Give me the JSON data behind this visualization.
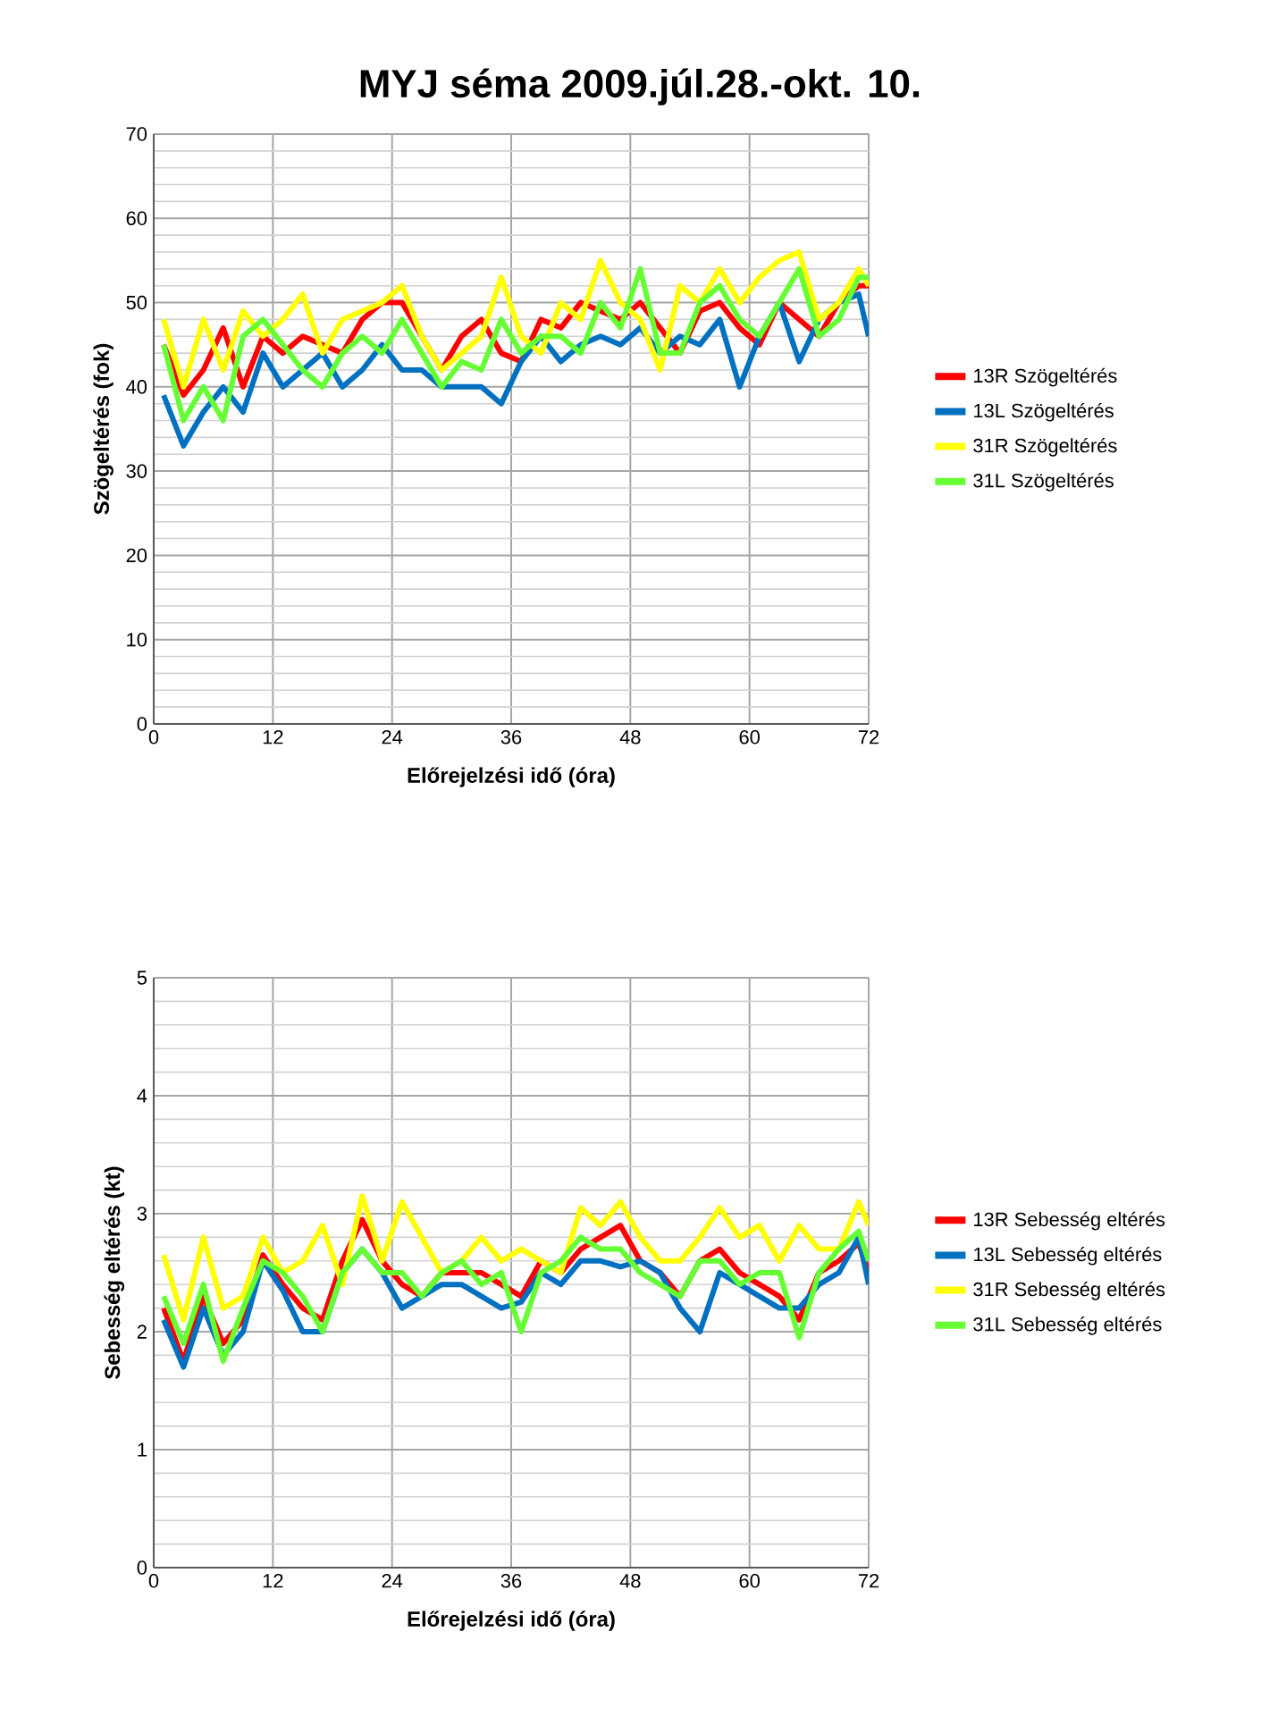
{
  "chart_data": [
    {
      "type": "line",
      "title": "MYJ séma 2009.júl.28.-okt. 10.",
      "xlabel": "Előrejelzési idő (óra)",
      "ylabel": "Szögeltérés (fok)",
      "x": [
        1,
        3,
        5,
        7,
        9,
        11,
        13,
        15,
        17,
        19,
        21,
        23,
        25,
        27,
        29,
        31,
        33,
        35,
        37,
        39,
        41,
        43,
        45,
        47,
        49,
        51,
        53,
        55,
        57,
        59,
        61,
        63,
        65,
        67,
        69,
        71,
        72
      ],
      "series": [
        {
          "name": "13R Szögeltérés",
          "color": "#ff0000",
          "values": [
            45,
            39,
            42,
            47,
            40,
            46,
            44,
            46,
            45,
            44,
            48,
            50,
            50,
            46,
            42,
            46,
            48,
            44,
            43,
            48,
            47,
            50,
            49,
            48,
            50,
            47,
            44,
            49,
            50,
            47,
            45,
            50,
            48,
            46,
            50,
            52,
            52
          ]
        },
        {
          "name": "13L Szögeltérés",
          "color": "#0070c0",
          "values": [
            39,
            33,
            37,
            40,
            37,
            44,
            40,
            42,
            44,
            40,
            42,
            45,
            42,
            42,
            40,
            40,
            40,
            38,
            43,
            46,
            43,
            45,
            46,
            45,
            47,
            44,
            46,
            45,
            48,
            40,
            46,
            50,
            43,
            48,
            50,
            51,
            46
          ]
        },
        {
          "name": "31R Szögeltérés",
          "color": "#ffff00",
          "values": [
            48,
            40,
            48,
            42,
            49,
            46,
            48,
            51,
            44,
            48,
            49,
            50,
            52,
            46,
            42,
            44,
            46,
            53,
            46,
            44,
            50,
            48,
            55,
            50,
            48,
            42,
            52,
            50,
            54,
            50,
            53,
            55,
            56,
            48,
            50,
            54,
            52
          ]
        },
        {
          "name": "31L Szögeltérés",
          "color": "#66ff33",
          "values": [
            45,
            36,
            40,
            36,
            46,
            48,
            45,
            42,
            40,
            44,
            46,
            44,
            48,
            44,
            40,
            43,
            42,
            48,
            44,
            46,
            46,
            44,
            50,
            47,
            54,
            44,
            44,
            50,
            52,
            48,
            46,
            50,
            54,
            46,
            48,
            53,
            53
          ]
        }
      ],
      "xlim": [
        0,
        72
      ],
      "xticks": [
        0,
        12,
        24,
        36,
        48,
        60,
        72
      ],
      "ylim": [
        0,
        70
      ],
      "yticks": [
        0,
        10,
        20,
        30,
        40,
        50,
        60,
        70
      ],
      "grid": true,
      "legend": "right",
      "marker": "none",
      "line_style": "solid"
    },
    {
      "type": "line",
      "xlabel": "Előrejelzési idő (óra)",
      "ylabel": "Sebesség eltérés (kt)",
      "x": [
        1,
        3,
        5,
        7,
        9,
        11,
        13,
        15,
        17,
        19,
        21,
        23,
        25,
        27,
        29,
        31,
        33,
        35,
        37,
        39,
        41,
        43,
        45,
        47,
        49,
        51,
        53,
        55,
        57,
        59,
        61,
        63,
        65,
        67,
        69,
        71,
        72
      ],
      "series": [
        {
          "name": "13R Sebesség eltérés",
          "color": "#ff0000",
          "values": [
            2.2,
            1.75,
            2.3,
            1.9,
            2.1,
            2.65,
            2.4,
            2.2,
            2.1,
            2.6,
            2.95,
            2.6,
            2.4,
            2.3,
            2.5,
            2.5,
            2.5,
            2.4,
            2.3,
            2.6,
            2.5,
            2.7,
            2.8,
            2.9,
            2.6,
            2.5,
            2.3,
            2.6,
            2.7,
            2.5,
            2.4,
            2.3,
            2.1,
            2.5,
            2.6,
            2.75,
            2.5
          ]
        },
        {
          "name": "13L Sebesség eltérés",
          "color": "#0070c0",
          "values": [
            2.1,
            1.7,
            2.2,
            1.8,
            2.0,
            2.6,
            2.35,
            2.0,
            2.0,
            2.5,
            2.7,
            2.5,
            2.2,
            2.3,
            2.4,
            2.4,
            2.3,
            2.2,
            2.25,
            2.5,
            2.4,
            2.6,
            2.6,
            2.55,
            2.6,
            2.5,
            2.2,
            2.0,
            2.5,
            2.4,
            2.3,
            2.2,
            2.2,
            2.4,
            2.5,
            2.8,
            2.4
          ]
        },
        {
          "name": "31R Sebesség eltérés",
          "color": "#ffff00",
          "values": [
            2.65,
            2.1,
            2.8,
            2.2,
            2.3,
            2.8,
            2.5,
            2.6,
            2.9,
            2.4,
            3.15,
            2.6,
            3.1,
            2.8,
            2.5,
            2.6,
            2.8,
            2.6,
            2.7,
            2.6,
            2.5,
            3.05,
            2.9,
            3.1,
            2.8,
            2.6,
            2.6,
            2.8,
            3.05,
            2.8,
            2.9,
            2.6,
            2.9,
            2.7,
            2.7,
            3.1,
            2.9
          ]
        },
        {
          "name": "31L Sebesség eltérés",
          "color": "#66ff33",
          "values": [
            2.3,
            1.9,
            2.4,
            1.75,
            2.2,
            2.6,
            2.5,
            2.3,
            2.0,
            2.5,
            2.7,
            2.5,
            2.5,
            2.3,
            2.5,
            2.6,
            2.4,
            2.5,
            2.0,
            2.5,
            2.6,
            2.8,
            2.7,
            2.7,
            2.5,
            2.4,
            2.3,
            2.6,
            2.6,
            2.4,
            2.5,
            2.5,
            1.95,
            2.5,
            2.7,
            2.85,
            2.6
          ]
        }
      ],
      "xlim": [
        0,
        72
      ],
      "xticks": [
        0,
        12,
        24,
        36,
        48,
        60,
        72
      ],
      "ylim": [
        0,
        5
      ],
      "yticks": [
        0,
        1,
        2,
        3,
        4,
        5
      ],
      "grid": true,
      "legend": "right",
      "marker": "none",
      "line_style": "solid"
    }
  ]
}
